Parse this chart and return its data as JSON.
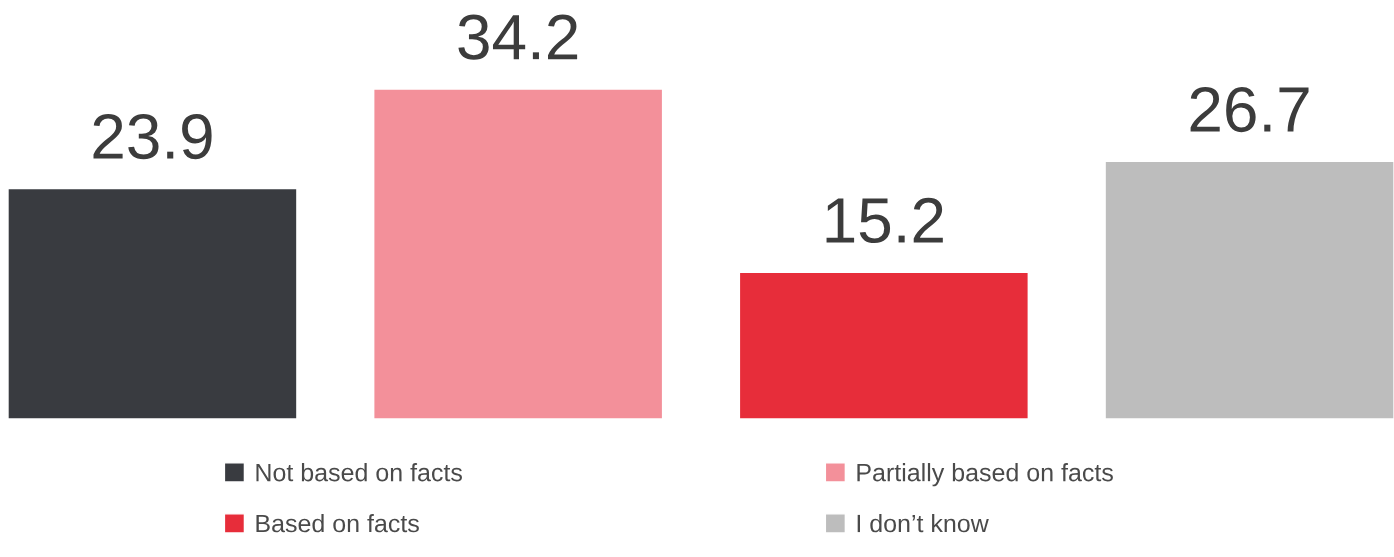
{
  "chart_data": {
    "type": "bar",
    "categories": [
      null
    ],
    "series": [
      {
        "name": "Not based on facts",
        "color": "#393b40",
        "values": [
          23.9
        ]
      },
      {
        "name": "Partially based on facts",
        "color": "#f3909a",
        "values": [
          34.2
        ]
      },
      {
        "name": "Based on facts",
        "color": "#e72d3a",
        "values": [
          15.2
        ]
      },
      {
        "name": "I don’t know",
        "color": "#bdbdbd",
        "values": [
          26.7
        ]
      }
    ],
    "data_labels": true,
    "legend": "bottom",
    "tick_labels": false,
    "grid": false
  }
}
